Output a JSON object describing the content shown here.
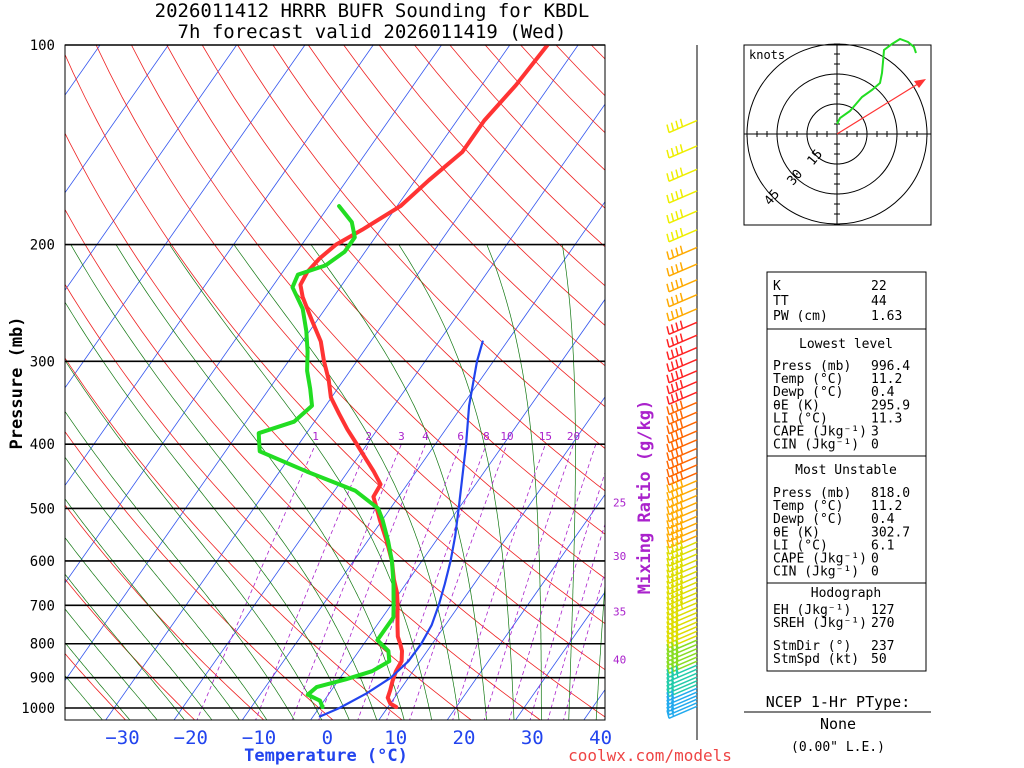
{
  "chart_data": {
    "type": "line",
    "title": [
      "2026011412 HRRR BUFR Sounding for KBDL",
      "7h forecast valid 2026011419 (Wed)"
    ],
    "xlabel": "Temperature (°C)",
    "ylabel": "Pressure (mb)",
    "x_ticks": [
      "−30",
      "−20",
      "−10",
      "0",
      "10",
      "20",
      "30",
      "40"
    ],
    "y_ticks": [
      {
        "p": 100,
        "label": "100"
      },
      {
        "p": 200,
        "label": "200"
      },
      {
        "p": 300,
        "label": "300"
      },
      {
        "p": 400,
        "label": "400"
      },
      {
        "p": 500,
        "label": "500"
      },
      {
        "p": 600,
        "label": "600"
      },
      {
        "p": 700,
        "label": "700"
      },
      {
        "p": 800,
        "label": "800"
      },
      {
        "p": 900,
        "label": "900"
      },
      {
        "p": 1000,
        "label": "1000"
      }
    ],
    "mixing_ratio_label": "Mixing Ratio (g/kg)",
    "mixing_ratio_top": [
      {
        "w": 1,
        "label": "1"
      },
      {
        "w": 2,
        "label": "2"
      },
      {
        "w": 3,
        "label": "3"
      },
      {
        "w": 4,
        "label": "4"
      },
      {
        "w": 6,
        "label": "6"
      },
      {
        "w": 8,
        "label": "8"
      },
      {
        "w": 10,
        "label": "10"
      },
      {
        "w": 15,
        "label": "15"
      },
      {
        "w": 20,
        "label": "20"
      }
    ],
    "mixing_ratio_side": [
      {
        "label": "25",
        "p": 490
      },
      {
        "label": "30",
        "p": 590
      },
      {
        "label": "35",
        "p": 715
      },
      {
        "label": "40",
        "p": 845
      }
    ],
    "series": [
      {
        "name": "Temperature",
        "color": "#ff3333",
        "points": [
          [
            996.4,
            11.2
          ],
          [
            985,
            10.0
          ],
          [
            965,
            9.0
          ],
          [
            940,
            8.6
          ],
          [
            910,
            8.0
          ],
          [
            880,
            7.5
          ],
          [
            850,
            7.3
          ],
          [
            820,
            6.3
          ],
          [
            800,
            5.3
          ],
          [
            780,
            4.2
          ],
          [
            750,
            3.0
          ],
          [
            720,
            1.8
          ],
          [
            700,
            1.0
          ],
          [
            670,
            -0.4
          ],
          [
            640,
            -2.2
          ],
          [
            600,
            -4.4
          ],
          [
            560,
            -7.2
          ],
          [
            520,
            -10.4
          ],
          [
            500,
            -12.0
          ],
          [
            480,
            -13.7
          ],
          [
            460,
            -13.9
          ],
          [
            440,
            -16.2
          ],
          [
            420,
            -18.8
          ],
          [
            400,
            -21.5
          ],
          [
            380,
            -24.4
          ],
          [
            360,
            -27.2
          ],
          [
            340,
            -30.1
          ],
          [
            320,
            -32.2
          ],
          [
            300,
            -34.8
          ],
          [
            280,
            -37.3
          ],
          [
            260,
            -40.8
          ],
          [
            240,
            -44.5
          ],
          [
            230,
            -46.1
          ],
          [
            220,
            -46.4
          ],
          [
            210,
            -46.0
          ],
          [
            200,
            -45.0
          ],
          [
            190,
            -42.7
          ],
          [
            175,
            -39.5
          ],
          [
            160,
            -38.0
          ],
          [
            145,
            -36.0
          ],
          [
            130,
            -36.0
          ],
          [
            115,
            -35.0
          ],
          [
            100,
            -34.5
          ]
        ]
      },
      {
        "name": "Dewpoint",
        "color": "#22dd22",
        "points": [
          [
            996.4,
            0.4
          ],
          [
            975,
            -0.6
          ],
          [
            955,
            -3.0
          ],
          [
            930,
            -2.5
          ],
          [
            905,
            1.0
          ],
          [
            880,
            4.0
          ],
          [
            850,
            5.5
          ],
          [
            820,
            4.3
          ],
          [
            790,
            1.6
          ],
          [
            760,
            1.6
          ],
          [
            730,
            1.6
          ],
          [
            700,
            0.4
          ],
          [
            650,
            -1.8
          ],
          [
            600,
            -4.4
          ],
          [
            560,
            -7.0
          ],
          [
            520,
            -10.0
          ],
          [
            500,
            -11.8
          ],
          [
            470,
            -17.0
          ],
          [
            440,
            -26.0
          ],
          [
            410,
            -35.0
          ],
          [
            385,
            -37.0
          ],
          [
            370,
            -33.0
          ],
          [
            350,
            -32.0
          ],
          [
            330,
            -34.0
          ],
          [
            310,
            -36.3
          ],
          [
            290,
            -38.2
          ],
          [
            270,
            -40.5
          ],
          [
            250,
            -43.3
          ],
          [
            232,
            -47.0
          ],
          [
            222,
            -47.5
          ],
          [
            215,
            -44.4
          ],
          [
            205,
            -43.0
          ],
          [
            195,
            -43.0
          ],
          [
            185,
            -45.0
          ],
          [
            175,
            -48.5
          ]
        ]
      },
      {
        "name": "Parcel",
        "color": "#2244ee",
        "points": [
          [
            1030,
            1.0
          ],
          [
            1000,
            3.0
          ],
          [
            950,
            5.5
          ],
          [
            900,
            7.4
          ],
          [
            850,
            8.3
          ],
          [
            800,
            8.4
          ],
          [
            750,
            8.0
          ],
          [
            700,
            7.0
          ],
          [
            650,
            5.7
          ],
          [
            600,
            4.2
          ],
          [
            550,
            2.3
          ],
          [
            500,
            0.0
          ],
          [
            450,
            -2.6
          ],
          [
            400,
            -5.5
          ],
          [
            350,
            -9.0
          ],
          [
            300,
            -12.4
          ],
          [
            280,
            -13.6
          ]
        ]
      }
    ],
    "wind_barbs_label": "",
    "hodograph": {
      "title": "knots",
      "ring_labels": [
        "15",
        "30",
        "45"
      ],
      "trace_color": "#22dd22",
      "storm_vector_color": "#ff3333"
    }
  },
  "indices": {
    "summary": [
      {
        "label": "K",
        "value": "22"
      },
      {
        "label": "TT",
        "value": "44"
      },
      {
        "label": "PW (cm)",
        "value": "1.63"
      }
    ],
    "lowest_level": {
      "title": "Lowest level",
      "rows": [
        {
          "label": "Press (mb)",
          "value": "996.4"
        },
        {
          "label": "Temp (°C)",
          "value": "11.2"
        },
        {
          "label": "Dewp (°C)",
          "value": "0.4"
        },
        {
          "label": "θE (K)",
          "value": "295.9"
        },
        {
          "label": "LI (°C)",
          "value": "11.3"
        },
        {
          "label": "CAPE (Jkg⁻¹)",
          "value": "3"
        },
        {
          "label": "CIN (Jkg⁻¹)",
          "value": "0"
        }
      ]
    },
    "most_unstable": {
      "title": "Most Unstable",
      "rows": [
        {
          "label": "Press (mb)",
          "value": "818.0"
        },
        {
          "label": "Temp (°C)",
          "value": "11.2"
        },
        {
          "label": "Dewp (°C)",
          "value": "0.4"
        },
        {
          "label": "θE (K)",
          "value": "302.7"
        },
        {
          "label": "LI (°C)",
          "value": "6.1"
        },
        {
          "label": "CAPE (Jkg⁻¹)",
          "value": "0"
        },
        {
          "label": "CIN (Jkg⁻¹)",
          "value": "0"
        }
      ]
    },
    "hodograph": {
      "title": "Hodograph",
      "rows": [
        {
          "label": "EH (Jkg⁻¹)",
          "value": "127"
        },
        {
          "label": "SREH (Jkg⁻¹)",
          "value": "270"
        },
        {
          "label": "StmDir (°)",
          "value": "237"
        },
        {
          "label": "StmSpd (kt)",
          "value": "50"
        }
      ]
    }
  },
  "ptype": {
    "title": "NCEP 1-Hr PType:",
    "value": "None",
    "amount": "(0.00\" L.E.)"
  },
  "footer": {
    "credit": "coolwx.com/models"
  }
}
